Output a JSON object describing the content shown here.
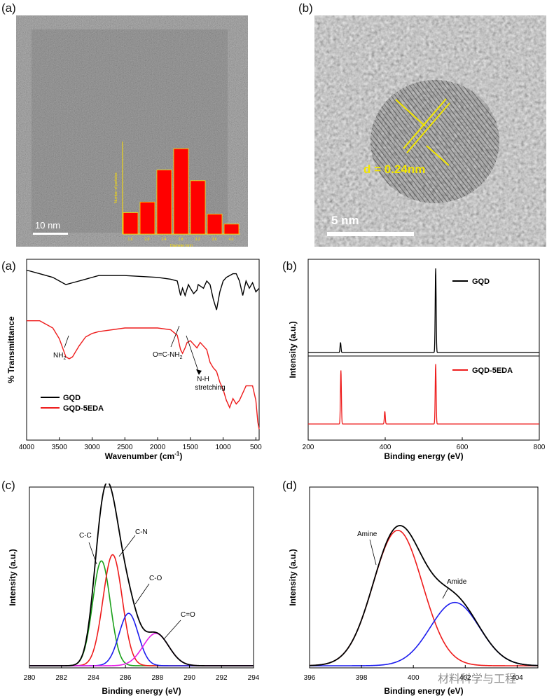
{
  "panel_labels": {
    "top_a": "(a)",
    "top_b": "(b)",
    "mid_a": "(a)",
    "mid_b": "(b)",
    "bot_c": "(c)",
    "bot_d": "(d)"
  },
  "tem_a": {
    "scale_label": "10  nm",
    "inset_title": "Number of particles",
    "inset_xlabel": "Diameter (nm)",
    "chart_data": {
      "type": "bar",
      "title": "",
      "xlabel": "Diameter (nm)",
      "ylabel": "Number of particles",
      "categories": [
        "1.6",
        "2.0",
        "2.4",
        "2.8",
        "3.2",
        "3.6",
        "4.0"
      ],
      "values": [
        3,
        4.5,
        9,
        12,
        7.5,
        2.8,
        1.4
      ],
      "ylim": [
        0,
        13
      ]
    }
  },
  "tem_b": {
    "scale_label": "5 nm",
    "d_label": "d = 0.24nm"
  },
  "ftir": {
    "ylabel": "% Transmittance",
    "xlabel": "Wavenumber (cm",
    "xlabel_sup": "-1",
    "xlabel_close": ")",
    "xticks": [
      "4000",
      "3500",
      "3000",
      "2500",
      "2000",
      "1500",
      "1000",
      "500"
    ],
    "annotations": {
      "nh2": "NH",
      "nh2_sub": "2",
      "amide": "O=C-NH",
      "amide_sub": "2",
      "nh_line1": "N-H",
      "nh_line2": "stretching"
    },
    "legend": [
      "GQD",
      "GQD-5EDA"
    ],
    "colors": {
      "GQD": "#000000",
      "GQD-5EDA": "#ee1c1c"
    },
    "chart_data": {
      "type": "line",
      "xlabel": "Wavenumber (cm-1)",
      "ylabel": "% Transmittance",
      "xlim": [
        4000,
        450
      ],
      "series": [
        {
          "name": "GQD",
          "x": [
            4000,
            3800,
            3600,
            3400,
            3300,
            3100,
            2900,
            2500,
            2000,
            1800,
            1700,
            1650,
            1620,
            1580,
            1530,
            1500,
            1450,
            1400,
            1380,
            1300,
            1250,
            1200,
            1150,
            1100,
            1050,
            1000,
            950,
            900,
            850,
            800,
            750,
            700,
            650,
            600,
            550,
            500,
            450
          ],
          "y": [
            94,
            92,
            90,
            86,
            87,
            89,
            91,
            91,
            90,
            89,
            88,
            80,
            84,
            80,
            86,
            84,
            81,
            83,
            86,
            84,
            88,
            86,
            78,
            72,
            82,
            88,
            90,
            91,
            92,
            92,
            88,
            80,
            88,
            84,
            87,
            82,
            84
          ]
        },
        {
          "name": "GQD-5EDA",
          "x": [
            4000,
            3800,
            3600,
            3500,
            3400,
            3350,
            3300,
            3200,
            3100,
            3000,
            2900,
            2500,
            2000,
            1800,
            1700,
            1650,
            1620,
            1580,
            1550,
            1500,
            1450,
            1400,
            1350,
            1300,
            1250,
            1200,
            1150,
            1100,
            1050,
            1000,
            950,
            900,
            850,
            800,
            750,
            700,
            650,
            600,
            550,
            500,
            470,
            450
          ],
          "y": [
            66,
            66,
            62,
            56,
            46,
            45,
            46,
            52,
            57,
            59,
            60,
            62,
            62,
            61,
            58,
            50,
            48,
            51,
            54,
            55,
            53,
            51,
            54,
            52,
            50,
            43,
            40,
            38,
            32,
            28,
            22,
            18,
            23,
            20,
            22,
            26,
            30,
            30,
            30,
            22,
            10,
            6
          ]
        }
      ]
    }
  },
  "xps": {
    "ylabel": "Intensity (a.u.)",
    "xlabel": "Binding energy (eV)",
    "xticks": [
      "200",
      "400",
      "600",
      "800"
    ],
    "legend": [
      "GQD",
      "GQD-5EDA"
    ],
    "chart_data": {
      "type": "line",
      "xlabel": "Binding energy (eV)",
      "ylabel": "Intensity (a.u.)",
      "xlim": [
        200,
        800
      ],
      "series": [
        {
          "name": "GQD",
          "peaks": [
            {
              "x": 284,
              "height": 0.12
            },
            {
              "x": 531,
              "height": 1.0
            }
          ]
        },
        {
          "name": "GQD-5EDA",
          "peaks": [
            {
              "x": 285,
              "height": 0.85
            },
            {
              "x": 399,
              "height": 0.2
            },
            {
              "x": 531,
              "height": 0.95
            }
          ]
        }
      ]
    }
  },
  "c1s": {
    "ylabel": "Intensity (a.u.)",
    "xlabel": "Binding energy (eV)",
    "xticks": [
      "280",
      "282",
      "284",
      "286",
      "288",
      "290",
      "292",
      "294"
    ],
    "labels": {
      "cc": "C-C",
      "cn": "C-N",
      "co": "C-O",
      "coo": "C=O"
    },
    "chart_data": {
      "type": "line",
      "xlabel": "Binding energy (eV)",
      "ylabel": "Intensity (a.u.)",
      "xlim": [
        280,
        294
      ],
      "series": [
        {
          "name": "C-C",
          "color": "#1aa01a",
          "center": 284.5,
          "sigma": 0.55,
          "amp": 0.68
        },
        {
          "name": "C-N",
          "color": "#ee1c1c",
          "center": 285.2,
          "sigma": 0.6,
          "amp": 0.72
        },
        {
          "name": "C-O",
          "color": "#1c1cee",
          "center": 286.2,
          "sigma": 0.6,
          "amp": 0.34
        },
        {
          "name": "C=O",
          "color": "#e61ce6",
          "center": 287.9,
          "sigma": 0.8,
          "amp": 0.21
        },
        {
          "name": "Sum",
          "color": "#000000"
        }
      ]
    }
  },
  "n1s": {
    "ylabel": "Intensity (a.u.)",
    "xlabel": "Binding energy (eV)",
    "xticks": [
      "396",
      "398",
      "400",
      "402",
      "404"
    ],
    "labels": {
      "amine": "Amine",
      "amide": "Amide"
    },
    "watermark": "材料科学与工程",
    "chart_data": {
      "type": "line",
      "xlabel": "Binding energy (eV)",
      "ylabel": "Intensity (a.u.)",
      "xlim": [
        396,
        404.8
      ],
      "series": [
        {
          "name": "Amine",
          "color": "#ee1c1c",
          "center": 399.4,
          "sigma": 0.95,
          "amp": 0.92
        },
        {
          "name": "Amide",
          "color": "#1c1cee",
          "center": 401.6,
          "sigma": 0.95,
          "amp": 0.43
        },
        {
          "name": "Sum",
          "color": "#000000"
        }
      ]
    }
  }
}
